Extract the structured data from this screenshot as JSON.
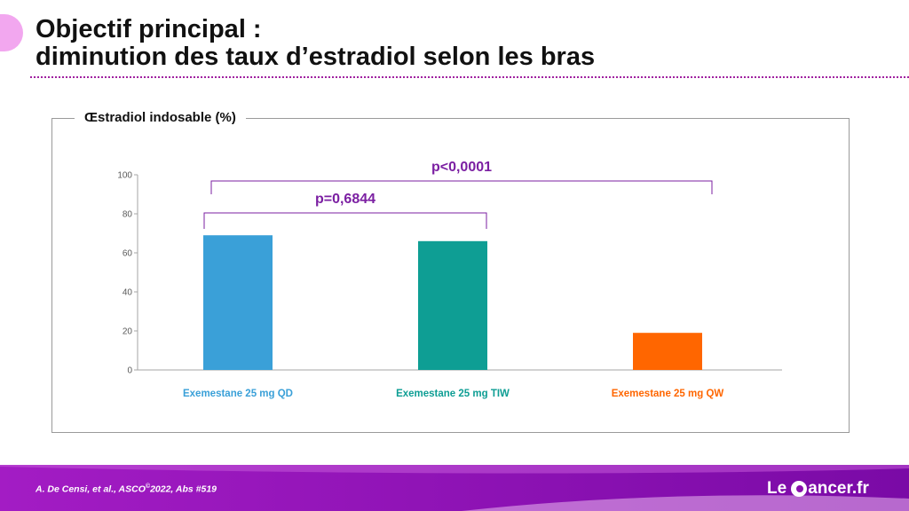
{
  "slide": {
    "title_line1": "Objectif principal :",
    "title_line2": "diminution des taux d’estradiol selon les bras",
    "citation_main": "A. De Censi, et al.,  ASCO",
    "citation_sup": "©",
    "citation_rest": "2022, Abs #519",
    "logo_left": "Le",
    "logo_right": "ancer.fr"
  },
  "colors": {
    "accent": "#8a0fae",
    "dotted_rule": "#a020a0",
    "significance": "#7b1fa2"
  },
  "chart_data": {
    "type": "bar",
    "title": "Œstradiol indosable (%)",
    "categories": [
      "Exemestane 25 mg QD",
      "Exemestane 25 mg TIW",
      "Exemestane 25 mg QW"
    ],
    "values": [
      69,
      66,
      19
    ],
    "colors": [
      "#3aa0d8",
      "#0e9e94",
      "#ff6600"
    ],
    "ylim": [
      0,
      100
    ],
    "yticks": [
      0,
      20,
      40,
      60,
      80,
      100
    ],
    "grid": false,
    "legend": "none",
    "comparisons": [
      {
        "from": 0,
        "to": 1,
        "label": "p=0,6844"
      },
      {
        "from": 0,
        "to": 2,
        "label": "p<0,0001"
      }
    ]
  }
}
